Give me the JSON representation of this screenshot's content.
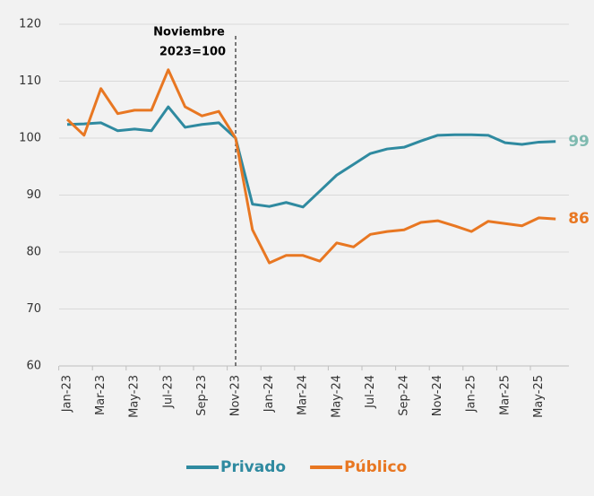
{
  "chart_data": {
    "type": "line",
    "categories": [
      "Jan-23",
      null,
      "Mar-23",
      null,
      "May-23",
      null,
      "Jul-23",
      null,
      "Sep-23",
      null,
      "Nov-23",
      null,
      "Jan-24",
      null,
      "Mar-24",
      null,
      "May-24",
      null,
      "Jul-24",
      null,
      "Sep-24",
      null,
      "Nov-24",
      null,
      "Jan-25",
      null,
      "Mar-25",
      null,
      "May-25",
      null
    ],
    "series": [
      {
        "name": "Privado",
        "color": "#2f8aa0",
        "label_color": "#7fbab0",
        "end_label": "99",
        "values": [
          102.4,
          102.5,
          102.7,
          101.3,
          101.6,
          101.3,
          105.5,
          101.9,
          102.4,
          102.7,
          100,
          88.4,
          88.0,
          88.7,
          87.9,
          90.7,
          93.5,
          95.4,
          97.3,
          98.1,
          98.4,
          99.5,
          100.5,
          100.6,
          100.6,
          100.5,
          99.2,
          98.9,
          99.3,
          99.4
        ]
      },
      {
        "name": "Público",
        "color": "#e87722",
        "label_color": "#e87722",
        "end_label": "86",
        "values": [
          103.3,
          100.5,
          108.7,
          104.3,
          104.9,
          104.9,
          112.0,
          105.5,
          103.9,
          104.7,
          100,
          83.9,
          78.1,
          79.4,
          79.4,
          78.4,
          81.6,
          80.9,
          83.1,
          83.6,
          83.9,
          85.2,
          85.5,
          84.6,
          83.6,
          85.4,
          85.0,
          84.6,
          86.0,
          85.8
        ]
      }
    ],
    "ylim": [
      60,
      120
    ],
    "yticks": [
      60,
      70,
      80,
      90,
      100,
      110,
      120
    ],
    "grid": true,
    "annotation": {
      "lines": [
        "Noviembre",
        "2023=100"
      ],
      "at": "Nov-23"
    },
    "legend": "bottom"
  }
}
